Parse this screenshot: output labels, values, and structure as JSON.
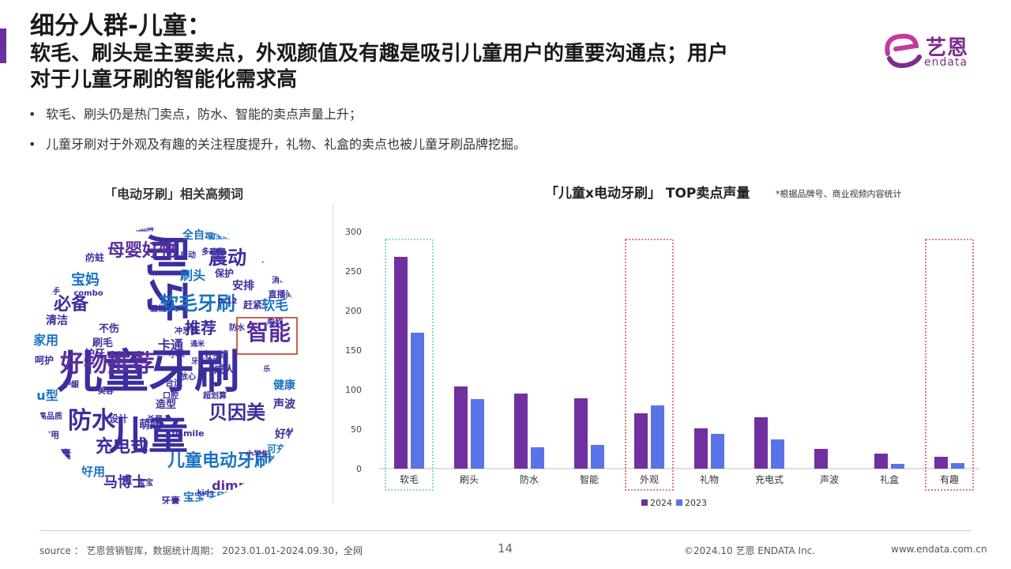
{
  "header": {
    "title_line1": "细分人群-儿童：",
    "title_line2": "软毛、刷头是主要卖点，外观颜值及有趣是吸引儿童用户的重要沟通点；用户",
    "title_line3": "对于儿童牙刷的智能化需求高"
  },
  "logo": {
    "cn": "艺恩",
    "en": "endata",
    "brand_color": "#7b2d8e"
  },
  "bullets": [
    "软毛、刷头仍是热门卖点，防水、智能的卖点声量上升；",
    "儿童牙刷对于外观及有趣的关注程度提升，礼物、礼盒的卖点也被儿童牙刷品牌挖掘。"
  ],
  "wordcloud": {
    "title": "「电动牙刷」相关高频词",
    "highlight_color": "#c0392b",
    "words": [
      {
        "text": "儿童牙刷",
        "color": "#3a2e9e"
      },
      {
        "text": "刷牙",
        "color": "#3a2e9e"
      },
      {
        "text": "儿童",
        "color": "#3a2e9e"
      },
      {
        "text": "好物推荐",
        "color": "#5b2f9e"
      },
      {
        "text": "软毛牙刷",
        "color": "#1a73c2"
      },
      {
        "text": "智能",
        "color": "#5b2f9e"
      },
      {
        "text": "防水",
        "color": "#3a2e9e"
      },
      {
        "text": "母婴好物",
        "color": "#5b2f9e"
      },
      {
        "text": "震动",
        "color": "#3a2e9e"
      },
      {
        "text": "儿童电动牙刷",
        "color": "#1a73c2"
      },
      {
        "text": "贝因美",
        "color": "#3a2e9e"
      },
      {
        "text": "充电式",
        "color": "#3a2e9e"
      },
      {
        "text": "必备",
        "color": "#3a2e9e"
      },
      {
        "text": "推荐",
        "color": "#3a2e9e"
      },
      {
        "text": "宝妈",
        "color": "#1a73c2"
      },
      {
        "text": "马博士",
        "color": "#3a2e9e"
      },
      {
        "text": "dimmi",
        "color": "#5b2f9e"
      },
      {
        "text": "宝宝牙刷",
        "color": "#1a73c2"
      },
      {
        "text": "卡通",
        "color": "#3a2e9e"
      },
      {
        "text": "软毛",
        "color": "#1a73c2"
      },
      {
        "text": "刷头",
        "color": "#1a73c2"
      },
      {
        "text": "全自动",
        "color": "#1a73c2"
      },
      {
        "text": "u型",
        "color": "#1a73c2"
      },
      {
        "text": "家用",
        "color": "#1a73c2"
      },
      {
        "text": "清洁",
        "color": "#3a2e9e"
      },
      {
        "text": "好用",
        "color": "#1a73c2"
      },
      {
        "text": "胶囊",
        "color": "#3a2e9e"
      },
      {
        "text": "健康",
        "color": "#1a73c2"
      },
      {
        "text": "声波",
        "color": "#3a2e9e"
      },
      {
        "text": "好物",
        "color": "#3a2e9e"
      },
      {
        "text": "萌娃",
        "color": "#3a2e9e"
      },
      {
        "text": "造型",
        "color": "#3a2e9e"
      },
      {
        "text": "护牙",
        "color": "#3a2e9e"
      },
      {
        "text": "不伤",
        "color": "#3a2e9e"
      },
      {
        "text": "刷毛",
        "color": "#3a2e9e"
      },
      {
        "text": "呵护",
        "color": "#3a2e9e"
      },
      {
        "text": "安排",
        "color": "#3a2e9e"
      },
      {
        "text": "可充电",
        "color": "#1a73c2"
      },
      {
        "text": "牙膏",
        "color": "#3a2e9e"
      },
      {
        "text": "成人",
        "color": "#3a2e9e"
      },
      {
        "text": "赶紧",
        "color": "#3a2e9e"
      },
      {
        "text": "设计",
        "color": "#3a2e9e"
      },
      {
        "text": "保护",
        "color": "#3a2e9e"
      },
      {
        "text": "防蛀",
        "color": "#3a2e9e"
      },
      {
        "text": "宝宝刷牙",
        "color": "#1a73c2"
      },
      {
        "text": "多功能",
        "color": "#3a2e9e"
      },
      {
        "text": "自动",
        "color": "#3a2e9e"
      },
      {
        "text": "好习惯",
        "color": "#3a2e9e"
      },
      {
        "text": "入手",
        "color": "#3a2e9e"
      },
      {
        "text": "combo",
        "color": "#3a2e9e"
      },
      {
        "text": "口腔",
        "color": "#3a2e9e"
      },
      {
        "text": "超划算",
        "color": "#3a2e9e"
      },
      {
        "text": "欧可林",
        "color": "#1a73c2"
      },
      {
        "text": "划算",
        "color": "#3a2e9e"
      },
      {
        "text": "大品牌",
        "color": "#3a2e9e"
      },
      {
        "text": "usmile",
        "color": "#3a2e9e"
      },
      {
        "text": "实用",
        "color": "#3a2e9e"
      },
      {
        "text": "高品质",
        "color": "#3a2e9e"
      },
      {
        "text": "护龈",
        "color": "#3a2e9e"
      },
      {
        "text": "合适",
        "color": "#3a2e9e"
      },
      {
        "text": "消毒",
        "color": "#3a2e9e"
      },
      {
        "text": "直播间",
        "color": "#3a2e9e"
      },
      {
        "text": "音乐",
        "color": "#3a2e9e"
      },
      {
        "text": "柔软",
        "color": "#3a2e9e"
      },
      {
        "text": "放心",
        "color": "#3a2e9e"
      },
      {
        "text": "小学生",
        "color": "#3a2e9e"
      },
      {
        "text": "五档",
        "color": "#3a2e9e"
      },
      {
        "text": "美容",
        "color": "#3a2e9e"
      },
      {
        "text": "杀菌",
        "color": "#3a2e9e"
      },
      {
        "text": "6-12",
        "color": "#3a2e9e"
      },
      {
        "text": "从小",
        "color": "#3a2e9e"
      },
      {
        "text": "kids",
        "color": "#3a2e9e"
      },
      {
        "text": "口腔护理",
        "color": "#3a2e9e"
      },
      {
        "text": "冲牙器",
        "color": "#3a2e9e"
      },
      {
        "text": "小米",
        "color": "#3a2e9e"
      },
      {
        "text": "防水",
        "color": "#3a2e9e"
      },
      {
        "text": "宝宝",
        "color": "#3a2e9e"
      },
      {
        "text": "通米",
        "color": "#3a2e9e"
      },
      {
        "text": "乐",
        "color": "#3a2e9e"
      },
      {
        "text": "刷头",
        "color": "#3a2e9e"
      },
      {
        "text": "牙齿健康",
        "color": "#3a2e9e"
      }
    ]
  },
  "chart_title": "「儿童x电动牙刷」 TOP卖点声量",
  "chart_note": "*根据品牌号、商业视频内容统计",
  "chart_data": {
    "type": "bar",
    "categories": [
      "软毛",
      "刷头",
      "防水",
      "智能",
      "外观",
      "礼物",
      "充电式",
      "声波",
      "礼盒",
      "有趣"
    ],
    "series": [
      {
        "name": "2024",
        "color": "#7030a0",
        "values": [
          268,
          104,
          95,
          89,
          70,
          51,
          65,
          25,
          19,
          15
        ]
      },
      {
        "name": "2023",
        "color": "#5b73e8",
        "values": [
          172,
          88,
          27,
          30,
          80,
          44,
          37,
          0,
          6,
          7
        ]
      }
    ],
    "ylim": [
      0,
      300
    ],
    "yticks": [
      0,
      50,
      100,
      150,
      200,
      250,
      300
    ],
    "grid": false,
    "legend": "bottom-center",
    "highlights": [
      {
        "category": "软毛",
        "color": "#4dc0c5"
      },
      {
        "category": "外观",
        "color": "#c0392b"
      },
      {
        "category": "有趣",
        "color": "#c0392b"
      }
    ]
  },
  "footer": {
    "source": "source ： 艺恩营销智库，数据统计周期： 2023.01.01-2024.09.30，全网",
    "page": "14",
    "copyright": "©2024.10  艺恩 ENDATA Inc.",
    "url": "www.endata.com.cn"
  }
}
